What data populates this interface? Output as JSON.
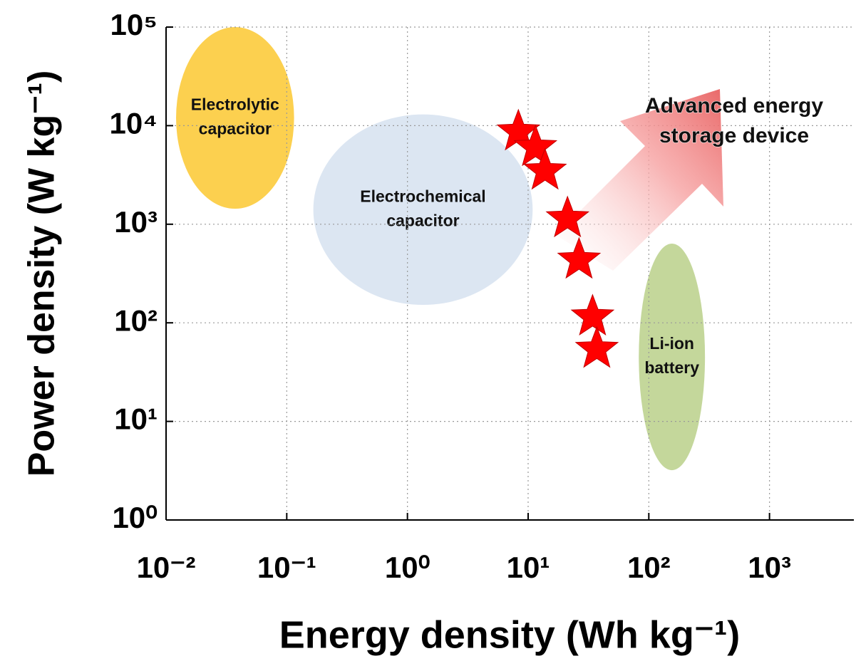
{
  "chart_data": {
    "type": "scatter",
    "x_label": "Energy density (Wh kg⁻¹)",
    "y_label": "Power density (W kg⁻¹)",
    "xscale": "log",
    "yscale": "log",
    "xlim": [
      0.01,
      5000
    ],
    "ylim": [
      1,
      100000
    ],
    "xticks": [
      {
        "value": 0.01,
        "label": "10⁻²"
      },
      {
        "value": 0.1,
        "label": "10⁻¹"
      },
      {
        "value": 1,
        "label": "10⁰"
      },
      {
        "value": 10,
        "label": "10¹"
      },
      {
        "value": 100,
        "label": "10²"
      },
      {
        "value": 1000,
        "label": "10³"
      }
    ],
    "yticks": [
      {
        "value": 1,
        "label": "10⁰"
      },
      {
        "value": 10,
        "label": "10¹"
      },
      {
        "value": 100,
        "label": "10²"
      },
      {
        "value": 1000,
        "label": "10³"
      },
      {
        "value": 10000,
        "label": "10⁴"
      },
      {
        "value": 100000,
        "label": "10⁵"
      }
    ],
    "grid": true,
    "series": [
      {
        "color": "#ff0000",
        "marker": "star",
        "x": [
          8.3,
          11.5,
          13.8,
          21.2,
          26.4,
          34.2,
          37.1
        ],
        "values": [
          8670,
          6010,
          3470,
          1140,
          434,
          115,
          54
        ]
      }
    ],
    "regions": [
      {
        "label": [
          "Electrolytic",
          "capacitor"
        ],
        "color": "#fcd04f",
        "xrange": [
          0.0121,
          0.115
        ],
        "yrange": [
          1436,
          100000
        ]
      },
      {
        "label": [
          "Electrochemical",
          "capacitor"
        ],
        "color": "#dce6f2",
        "xrange": [
          0.166,
          10.9
        ],
        "yrange": [
          152,
          13000
        ]
      },
      {
        "label": [
          "Li-ion",
          "battery"
        ],
        "color": "#c4d79b",
        "xrange": [
          82.6,
          292
        ],
        "yrange": [
          3.2,
          636
        ]
      }
    ],
    "annotation": [
      "Advanced energy",
      "storage device"
    ]
  }
}
